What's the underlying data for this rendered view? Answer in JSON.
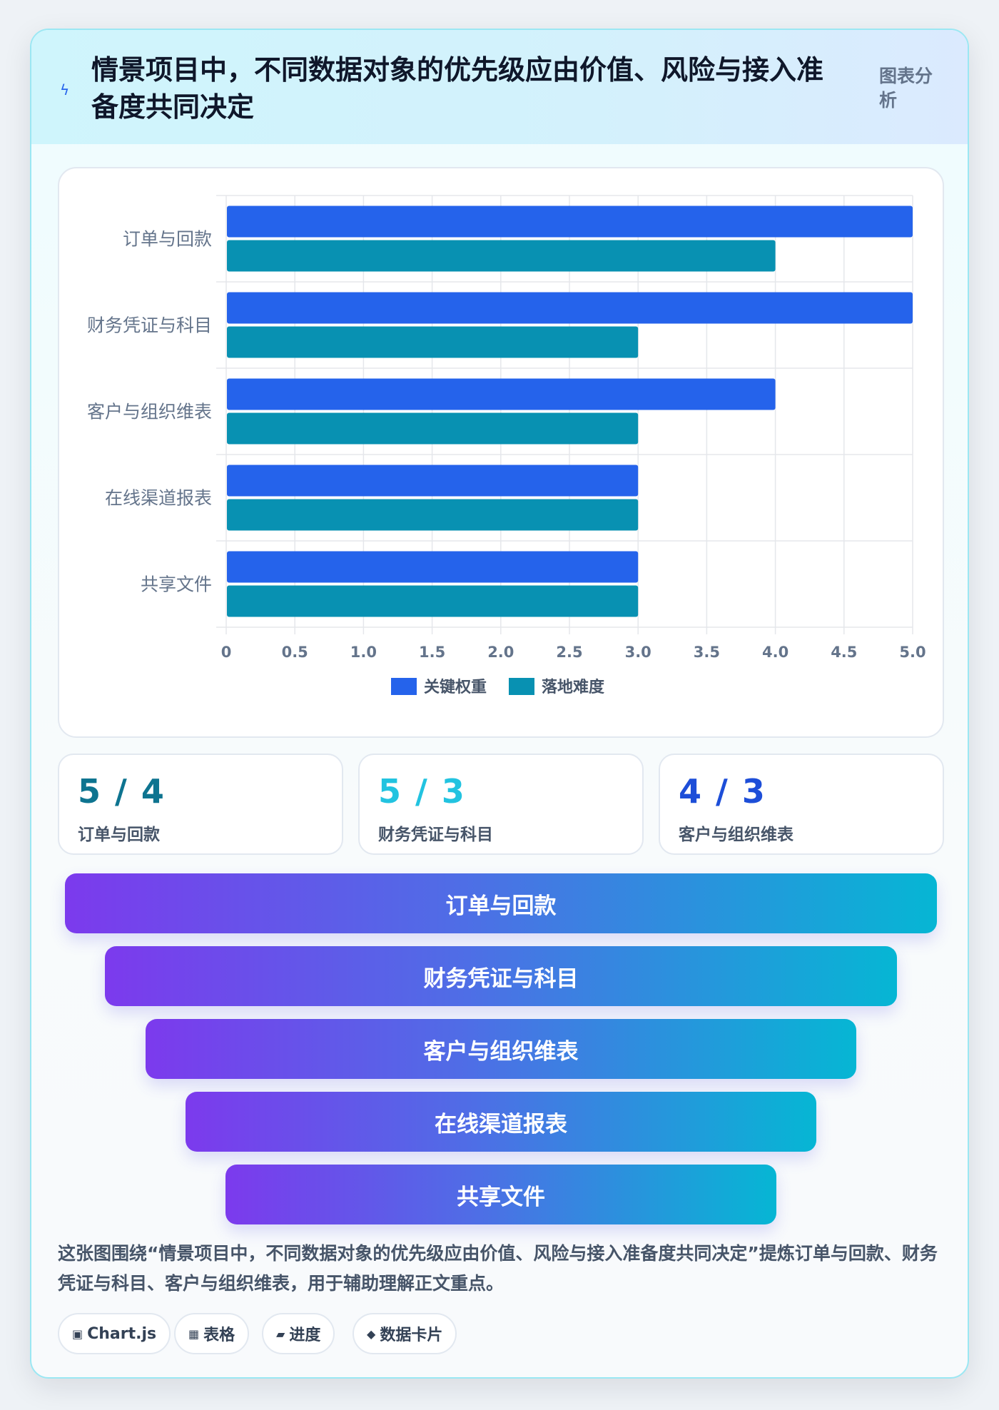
{
  "header": {
    "title": "情景项目中，不同数据对象的优先级应由价值、风险与接入准备度共同决定",
    "tag": "图表分析",
    "icon": "bolt-icon"
  },
  "colors": {
    "series1": "#2563eb",
    "series2": "#0891b2",
    "accent_cyan": "#22c3e0"
  },
  "chart_data": {
    "type": "bar",
    "orientation": "horizontal",
    "categories": [
      "订单与回款",
      "财务凭证与科目",
      "客户与组织维表",
      "在线渠道报表",
      "共享文件"
    ],
    "series": [
      {
        "name": "关键权重",
        "values": [
          5,
          5,
          4,
          3,
          3
        ]
      },
      {
        "name": "落地难度",
        "values": [
          4,
          3,
          3,
          3,
          3
        ]
      }
    ],
    "xlim": [
      0,
      5
    ],
    "xticks": [
      "0",
      "0.5",
      "1.0",
      "1.5",
      "2.0",
      "2.5",
      "3.0",
      "3.5",
      "4.0",
      "4.5",
      "5.0"
    ],
    "grid": true,
    "legend": "bottom"
  },
  "stats": [
    {
      "value": "5 / 4",
      "label": "订单与回款"
    },
    {
      "value": "5 / 3",
      "label": "财务凭证与科目"
    },
    {
      "value": "4 / 3",
      "label": "客户与组织维表"
    }
  ],
  "funnel": [
    "订单与回款",
    "财务凭证与科目",
    "客户与组织维表",
    "在线渠道报表",
    "共享文件"
  ],
  "summary": "这张图围绕“情景项目中，不同数据对象的优先级应由价值、风险与接入准备度共同决定”提炼订单与回款、财务凭证与科目、客户与组织维表，用于辅助理解正文重点。",
  "pills": [
    {
      "icon": "▣",
      "label": "Chart.js"
    },
    {
      "icon": "▦",
      "label": "表格"
    },
    {
      "icon": "▰",
      "label": "进度"
    },
    {
      "icon": "◆",
      "label": "数据卡片"
    }
  ]
}
